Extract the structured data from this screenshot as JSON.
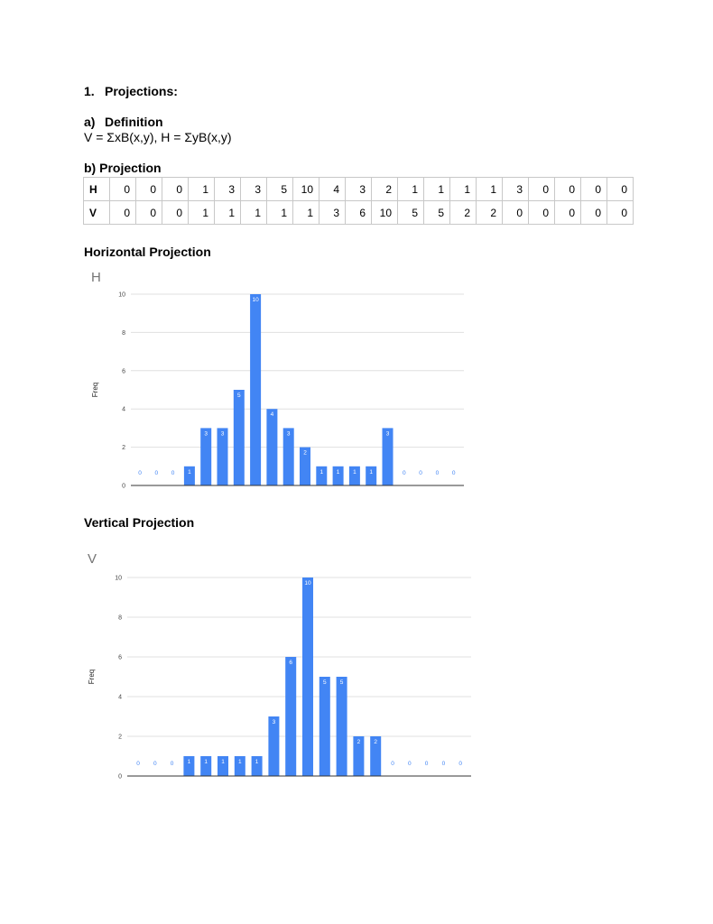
{
  "section": {
    "number": "1.",
    "title": "Projections:"
  },
  "definition": {
    "label": "a)",
    "title": "Definition",
    "formula": "V =  ΣxB(x,y), H = ΣyB(x,y)"
  },
  "projection": {
    "title": "b) Projection"
  },
  "table": {
    "rows": [
      {
        "label": "H",
        "values": [
          0,
          0,
          0,
          1,
          3,
          3,
          5,
          10,
          4,
          3,
          2,
          1,
          1,
          1,
          1,
          3,
          0,
          0,
          0,
          0
        ]
      },
      {
        "label": "V",
        "values": [
          0,
          0,
          0,
          1,
          1,
          1,
          1,
          1,
          3,
          6,
          10,
          5,
          5,
          2,
          2,
          0,
          0,
          0,
          0,
          0
        ]
      }
    ]
  },
  "horizontal_section_title": "Horizontal Projection",
  "vertical_section_title": "Vertical Projection",
  "bar_color": "#4285f4",
  "chart_data": [
    {
      "type": "bar",
      "title": "H",
      "xlabel": "",
      "ylabel": "Freq",
      "ylim": [
        0,
        10
      ],
      "yticks": [
        0,
        2,
        4,
        6,
        8,
        10
      ],
      "grid": true,
      "data_labels": true,
      "values": [
        0,
        0,
        0,
        1,
        3,
        3,
        5,
        10,
        4,
        3,
        2,
        1,
        1,
        1,
        1,
        3,
        0,
        0,
        0,
        0
      ]
    },
    {
      "type": "bar",
      "title": "V",
      "xlabel": "",
      "ylabel": "Freq",
      "ylim": [
        0,
        10
      ],
      "yticks": [
        0,
        2,
        4,
        6,
        8,
        10
      ],
      "grid": true,
      "data_labels": true,
      "values": [
        0,
        0,
        0,
        1,
        1,
        1,
        1,
        1,
        3,
        6,
        10,
        5,
        5,
        2,
        2,
        0,
        0,
        0,
        0,
        0
      ]
    }
  ]
}
